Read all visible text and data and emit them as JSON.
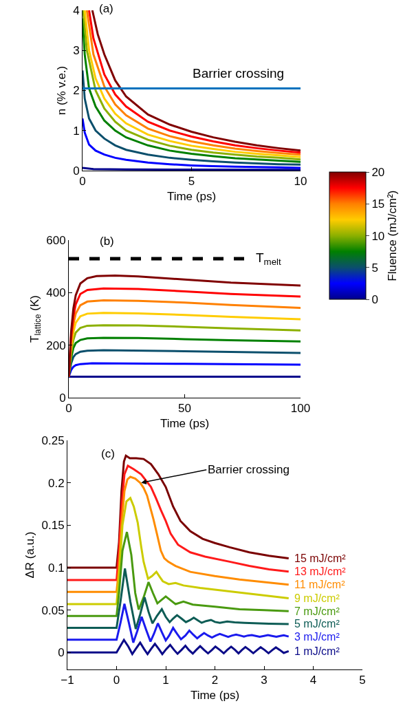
{
  "chart_data": [
    {
      "type": "line",
      "xlabel": "Time (ps)",
      "ylabel": "n (% v.e.)",
      "xlim": [
        0,
        10
      ],
      "ylim": [
        0,
        4
      ],
      "xticks": [
        0,
        5,
        10
      ],
      "yticks": [
        0,
        1,
        2,
        3,
        4
      ],
      "legend": false,
      "clabel": "Fluence (mJ/cm²)",
      "clim": [
        0,
        20
      ],
      "cticks": [
        0,
        5,
        10,
        15,
        20
      ],
      "annotations": [
        "(a)"
      ],
      "ref_lines": [
        {
          "axis": "y",
          "value": 2.05,
          "label": "Barrier crossing",
          "color": "#0072bd",
          "line_style": "solid"
        }
      ],
      "series": [
        {
          "color": "#00008b",
          "x": [
            0,
            0.5,
            2,
            5,
            10
          ],
          "values": [
            0.07,
            0.04,
            0.03,
            0.025,
            0.02
          ]
        },
        {
          "color": "#0000ff",
          "x": [
            0,
            0.1,
            0.3,
            0.6,
            1,
            1.5,
            2,
            3,
            4,
            5,
            6,
            7,
            8,
            9,
            10
          ],
          "values": [
            1.3,
            0.95,
            0.65,
            0.5,
            0.4,
            0.32,
            0.27,
            0.2,
            0.16,
            0.13,
            0.11,
            0.1,
            0.09,
            0.08,
            0.07
          ]
        },
        {
          "color": "#0b4f6c",
          "x": [
            0,
            0.1,
            0.3,
            0.6,
            1,
            1.5,
            2,
            3,
            4,
            5,
            6,
            7,
            8,
            9,
            10
          ],
          "values": [
            2.5,
            1.8,
            1.3,
            1.0,
            0.8,
            0.63,
            0.52,
            0.4,
            0.32,
            0.27,
            0.23,
            0.2,
            0.18,
            0.16,
            0.15
          ]
        },
        {
          "color": "#008000",
          "x": [
            0,
            0.1,
            0.3,
            0.6,
            1,
            1.5,
            2,
            3,
            4,
            5,
            6,
            7,
            8,
            9,
            10
          ],
          "values": [
            3.8,
            2.9,
            2.05,
            1.6,
            1.25,
            1.0,
            0.83,
            0.63,
            0.5,
            0.42,
            0.36,
            0.31,
            0.28,
            0.25,
            0.22
          ]
        },
        {
          "color": "#8cb000",
          "x": [
            0.03,
            0.2,
            0.6,
            1,
            1.5,
            2,
            3,
            4,
            5,
            6,
            7,
            8,
            9,
            10
          ],
          "values": [
            4,
            3.0,
            2.0,
            1.55,
            1.22,
            1.0,
            0.77,
            0.62,
            0.52,
            0.45,
            0.4,
            0.35,
            0.32,
            0.28
          ]
        },
        {
          "color": "#ffcc00",
          "x": [
            0.1,
            0.3,
            0.6,
            1,
            1.5,
            2,
            3,
            4,
            5,
            6,
            7,
            8,
            9,
            10
          ],
          "values": [
            4,
            3.0,
            2.3,
            1.8,
            1.42,
            1.18,
            0.9,
            0.74,
            0.62,
            0.54,
            0.47,
            0.42,
            0.38,
            0.34
          ]
        },
        {
          "color": "#ff8000",
          "x": [
            0.2,
            0.5,
            1,
            1.5,
            2,
            3,
            4,
            5,
            6,
            7,
            8,
            9,
            10
          ],
          "values": [
            4,
            2.9,
            2.1,
            1.65,
            1.38,
            1.05,
            0.86,
            0.73,
            0.63,
            0.55,
            0.49,
            0.44,
            0.4
          ]
        },
        {
          "color": "#ff0000",
          "x": [
            0.3,
            0.5,
            1,
            1.5,
            2,
            3,
            4,
            5,
            6,
            7,
            8,
            9,
            10
          ],
          "values": [
            4,
            3.3,
            2.4,
            1.9,
            1.6,
            1.22,
            1.0,
            0.85,
            0.73,
            0.63,
            0.56,
            0.5,
            0.45
          ]
        },
        {
          "color": "#800000",
          "x": [
            0.45,
            0.7,
            1,
            1.5,
            2,
            3,
            4,
            5,
            6,
            7,
            8,
            9,
            10
          ],
          "values": [
            4,
            3.4,
            2.9,
            2.25,
            1.85,
            1.4,
            1.15,
            0.97,
            0.83,
            0.72,
            0.63,
            0.56,
            0.5
          ]
        }
      ]
    },
    {
      "type": "line",
      "xlabel": "Time (ps)",
      "ylabel": "T$_{lattice}$ (K)",
      "xlim": [
        0,
        100
      ],
      "ylim": [
        0,
        600
      ],
      "xticks": [
        0,
        50,
        100
      ],
      "yticks": [
        0,
        200,
        400,
        600
      ],
      "legend": false,
      "annotations": [
        "(b)"
      ],
      "ref_lines": [
        {
          "axis": "y",
          "value": 529,
          "label": "T$_{melt}$",
          "color": "#000000",
          "line_style": "dashed"
        }
      ],
      "series": [
        {
          "color": "#00008b",
          "x": [
            0,
            100
          ],
          "values": [
            80,
            80
          ]
        },
        {
          "color": "#0000ff",
          "x": [
            0,
            1,
            2,
            3,
            5,
            10,
            50,
            100
          ],
          "values": [
            80,
            105,
            118,
            124,
            128,
            131,
            129,
            126
          ]
        },
        {
          "color": "#0b4f6c",
          "x": [
            0,
            1,
            2,
            3,
            5,
            8,
            15,
            50,
            100
          ],
          "values": [
            80,
            130,
            155,
            166,
            175,
            179,
            181,
            177,
            170
          ]
        },
        {
          "color": "#008000",
          "x": [
            0,
            1,
            2,
            3,
            5,
            8,
            15,
            30,
            50,
            70,
            100
          ],
          "values": [
            80,
            150,
            190,
            208,
            220,
            226,
            228,
            227,
            223,
            219,
            214
          ]
        },
        {
          "color": "#8cb000",
          "x": [
            0,
            1,
            2,
            3,
            5,
            8,
            15,
            30,
            50,
            70,
            100
          ],
          "values": [
            80,
            170,
            220,
            248,
            266,
            274,
            276,
            275,
            270,
            264,
            256
          ]
        },
        {
          "color": "#ffcc00",
          "x": [
            0,
            1,
            2,
            3,
            5,
            8,
            15,
            30,
            50,
            70,
            100
          ],
          "values": [
            80,
            190,
            250,
            285,
            310,
            320,
            323,
            321,
            315,
            308,
            299
          ]
        },
        {
          "color": "#ff8000",
          "x": [
            0,
            1,
            2,
            3,
            5,
            8,
            15,
            30,
            50,
            70,
            100
          ],
          "values": [
            80,
            210,
            280,
            320,
            352,
            366,
            371,
            369,
            362,
            353,
            342
          ]
        },
        {
          "color": "#ff0000",
          "x": [
            0,
            1,
            2,
            3,
            5,
            8,
            15,
            30,
            50,
            70,
            100
          ],
          "values": [
            80,
            230,
            310,
            355,
            395,
            410,
            416,
            414,
            405,
            395,
            385
          ]
        },
        {
          "color": "#800000",
          "x": [
            0,
            1,
            2,
            3,
            5,
            8,
            12,
            20,
            30,
            50,
            70,
            100
          ],
          "values": [
            80,
            250,
            340,
            390,
            435,
            455,
            463,
            465,
            462,
            450,
            438,
            427
          ]
        }
      ]
    },
    {
      "type": "line",
      "xlabel": "Time (ps)",
      "ylabel": "ΔR (a.u.)",
      "xlim": [
        -1,
        5
      ],
      "ylim": [
        -0.02,
        0.25
      ],
      "xticks": [
        {
          "value": -1,
          "label": "−1"
        },
        0,
        1,
        2,
        3,
        4,
        5
      ],
      "yticks": [
        0,
        0.05,
        0.1,
        0.15,
        0.2,
        0.25
      ],
      "legend": false,
      "annotations": [
        "(c)",
        {
          "text": "Barrier crossing",
          "x": 0.5,
          "y": 0.2
        }
      ],
      "series": [
        {
          "name": "15 mJ/cm²",
          "color": "#7a0000",
          "x": [
            -1,
            0,
            0.05,
            0.1,
            0.15,
            0.19,
            0.27,
            0.4,
            0.55,
            0.7,
            0.85,
            1,
            1.15,
            1.3,
            1.5,
            1.75,
            2,
            2.3,
            2.7,
            3.1,
            3.5
          ],
          "values": [
            0.1,
            0.1,
            0.13,
            0.19,
            0.225,
            0.232,
            0.229,
            0.229,
            0.228,
            0.222,
            0.21,
            0.195,
            0.172,
            0.155,
            0.143,
            0.134,
            0.129,
            0.124,
            0.118,
            0.114,
            0.111
          ]
        },
        {
          "name": "13 mJ/cm²",
          "color": "#ff1a1a",
          "x": [
            -1,
            0,
            0.05,
            0.1,
            0.16,
            0.23,
            0.35,
            0.5,
            0.7,
            0.8,
            0.9,
            1,
            1.1,
            1.25,
            1.5,
            1.8,
            2.3,
            2.7,
            3.1,
            3.5
          ],
          "values": [
            0.0855,
            0.0855,
            0.12,
            0.17,
            0.21,
            0.22,
            0.216,
            0.21,
            0.195,
            0.182,
            0.168,
            0.155,
            0.14,
            0.127,
            0.118,
            0.113,
            0.107,
            0.102,
            0.098,
            0.0954
          ]
        },
        {
          "name": "11 mJ/cm²",
          "color": "#ff8c00",
          "x": [
            -1,
            0,
            0.05,
            0.1,
            0.16,
            0.22,
            0.28,
            0.38,
            0.48,
            0.55,
            0.62,
            0.68,
            0.75,
            0.82,
            0.9,
            0.97,
            1.05,
            1.2,
            1.5,
            2,
            2.5,
            3,
            3.5
          ],
          "values": [
            0.0715,
            0.0715,
            0.1,
            0.15,
            0.19,
            0.204,
            0.207,
            0.205,
            0.2,
            0.194,
            0.185,
            0.172,
            0.157,
            0.14,
            0.12,
            0.111,
            0.107,
            0.102,
            0.095,
            0.09,
            0.086,
            0.083,
            0.08
          ]
        },
        {
          "name": "9 mJ/cm²",
          "color": "#cccc00",
          "x": [
            -1,
            0,
            0.05,
            0.12,
            0.2,
            0.28,
            0.35,
            0.43,
            0.5,
            0.55,
            0.64,
            0.72,
            0.81,
            0.88,
            0.94,
            1.06,
            1.2,
            1.36,
            1.7,
            2.3,
            2.9,
            3.5
          ],
          "values": [
            0.057,
            0.057,
            0.09,
            0.15,
            0.178,
            0.182,
            0.172,
            0.153,
            0.125,
            0.107,
            0.087,
            0.09,
            0.095,
            0.089,
            0.084,
            0.0806,
            0.082,
            0.079,
            0.076,
            0.072,
            0.068,
            0.064
          ]
        },
        {
          "name": "7 mJ/cm²",
          "color": "#4a9a10",
          "x": [
            -1,
            0,
            0.05,
            0.12,
            0.21,
            0.3,
            0.38,
            0.45,
            0.55,
            0.65,
            0.74,
            0.83,
            1,
            1.2,
            1.36,
            1.55,
            2,
            2.5,
            3,
            3.5
          ],
          "values": [
            0.043,
            0.043,
            0.07,
            0.12,
            0.142,
            0.115,
            0.07,
            0.0505,
            0.065,
            0.083,
            0.07,
            0.058,
            0.066,
            0.057,
            0.06,
            0.0565,
            0.054,
            0.051,
            0.05,
            0.0487
          ]
        },
        {
          "name": "5 mJ/cm²",
          "color": "#0d5c55",
          "x": [
            -1,
            0,
            0.08,
            0.17,
            0.28,
            0.39,
            0.48,
            0.57,
            0.65,
            0.73,
            0.82,
            0.92,
            1.0,
            1.08,
            1.15,
            1.23,
            1.32,
            1.41,
            1.49,
            1.57,
            1.65,
            1.73,
            1.82,
            1.92,
            2.0,
            2.1,
            2.25,
            2.4,
            2.6,
            2.8,
            3.1,
            3.5
          ],
          "values": [
            0.029,
            0.029,
            0.06,
            0.099,
            0.06,
            0.0277,
            0.045,
            0.065,
            0.048,
            0.0344,
            0.043,
            0.051,
            0.042,
            0.0358,
            0.04,
            0.044,
            0.04,
            0.0358,
            0.038,
            0.041,
            0.038,
            0.035,
            0.037,
            0.0384,
            0.036,
            0.035,
            0.0365,
            0.0355,
            0.035,
            0.0345,
            0.034,
            0.0336
          ]
        },
        {
          "name": "3 mJ/cm²",
          "color": "#1a1aee",
          "x": [
            -1,
            0,
            0.08,
            0.16,
            0.25,
            0.34,
            0.42,
            0.51,
            0.6,
            0.69,
            0.76,
            0.84,
            0.92,
            1.0,
            1.07,
            1.15,
            1.23,
            1.31,
            1.4,
            1.48,
            1.56,
            1.64,
            1.71,
            1.78,
            1.86,
            1.94,
            2.02,
            2.1,
            2.19,
            2.27,
            2.35,
            2.43,
            2.51,
            2.59,
            2.67,
            2.75,
            2.83,
            2.91,
            3.0,
            3.08,
            3.16,
            3.25,
            3.33,
            3.4,
            3.5
          ],
          "values": [
            0.015,
            0.015,
            0.035,
            0.0573,
            0.035,
            0.0116,
            0.025,
            0.042,
            0.027,
            0.0129,
            0.022,
            0.0344,
            0.024,
            0.0142,
            0.02,
            0.029,
            0.022,
            0.0156,
            0.02,
            0.0258,
            0.021,
            0.0167,
            0.02,
            0.023,
            0.02,
            0.0177,
            0.02,
            0.0218,
            0.02,
            0.0183,
            0.02,
            0.0212,
            0.02,
            0.0188,
            0.02,
            0.0205,
            0.0195,
            0.0185,
            0.0195,
            0.0205,
            0.0195,
            0.0185,
            0.0195,
            0.0203,
            0.0188
          ]
        },
        {
          "name": "1 mJ/cm²",
          "color": "#0a0a88",
          "x": [
            -1,
            0,
            0.08,
            0.15,
            0.24,
            0.32,
            0.4,
            0.48,
            0.56,
            0.63,
            0.7,
            0.78,
            0.86,
            0.93,
            1.01,
            1.09,
            1.17,
            1.24,
            1.32,
            1.4,
            1.47,
            1.55,
            1.62,
            1.7,
            1.78,
            1.86,
            1.94,
            2.01,
            2.1,
            2.18,
            2.25,
            2.33,
            2.41,
            2.48,
            2.55,
            2.62,
            2.7,
            2.78,
            2.86,
            2.93,
            3.01,
            3.09,
            3.17,
            3.24,
            3.32,
            3.4,
            3.5
          ],
          "values": [
            0,
            0,
            0.008,
            0.0148,
            0.007,
            -0.0019,
            0.005,
            0.0116,
            0.004,
            -0.0019,
            0.004,
            0.0102,
            0.004,
            -0.0019,
            0.004,
            0.0089,
            0.003,
            -0.0015,
            0.003,
            0.008,
            0.003,
            -0.0013,
            0.003,
            0.0075,
            0.003,
            -0.001,
            0.003,
            0.007,
            0.003,
            -0.001,
            0.003,
            0.0068,
            0.003,
            -0.001,
            0.003,
            0.0065,
            0.003,
            -0.0008,
            0.003,
            0.0062,
            0.003,
            -0.0008,
            0.003,
            0.006,
            0.003,
            -0.0005,
            0.0016
          ]
        }
      ]
    }
  ]
}
